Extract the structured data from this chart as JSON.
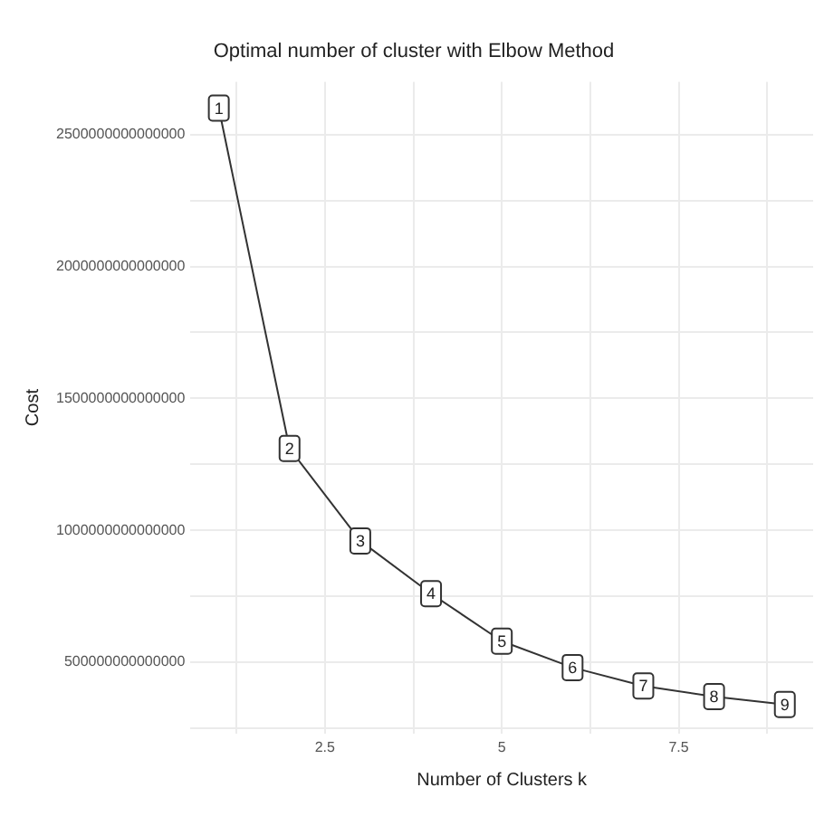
{
  "chart_data": {
    "type": "line",
    "title": "Optimal number of cluster with Elbow Method",
    "xlabel": "Number of Clusters k",
    "ylabel": "Cost",
    "x": [
      1,
      2,
      3,
      4,
      5,
      6,
      7,
      8,
      9
    ],
    "series": [
      {
        "color": "#333333",
        "values": [
          2600000000000000,
          1310000000000000,
          960000000000000,
          760000000000000,
          580000000000000,
          480000000000000,
          410000000000000,
          370000000000000,
          340000000000000
        ]
      }
    ],
    "annotations": [
      {
        "text": "1",
        "x": 1,
        "y": 2600000000000000
      },
      {
        "text": "2",
        "x": 2,
        "y": 1310000000000000
      },
      {
        "text": "3",
        "x": 3,
        "y": 960000000000000
      },
      {
        "text": "4",
        "x": 4,
        "y": 760000000000000
      },
      {
        "text": "5",
        "x": 5,
        "y": 580000000000000
      },
      {
        "text": "6",
        "x": 6,
        "y": 480000000000000
      },
      {
        "text": "7",
        "x": 7,
        "y": 410000000000000
      },
      {
        "text": "8",
        "x": 8,
        "y": 370000000000000
      },
      {
        "text": "9",
        "x": 9,
        "y": 340000000000000
      }
    ],
    "xlim": [
      0.6,
      9.4
    ],
    "xticks": [
      {
        "value": 1.25,
        "label": null
      },
      2.5,
      {
        "value": 3.75,
        "label": null
      },
      5,
      {
        "value": 6.25,
        "label": null
      },
      7.5,
      {
        "value": 8.75,
        "label": null
      }
    ],
    "ylim": [
      230000000000000,
      2700000000000000
    ],
    "yticks": [
      {
        "value": 250000000000000,
        "label": null
      },
      500000000000000,
      {
        "value": 750000000000000,
        "label": null
      },
      1000000000000000,
      {
        "value": 1250000000000000,
        "label": null
      },
      1500000000000000,
      {
        "value": 1750000000000000,
        "label": null
      },
      2000000000000000,
      {
        "value": 2250000000000000,
        "label": null
      },
      2500000000000000
    ],
    "grid": true,
    "legend": false,
    "marker": "square",
    "line_style": "solid"
  }
}
